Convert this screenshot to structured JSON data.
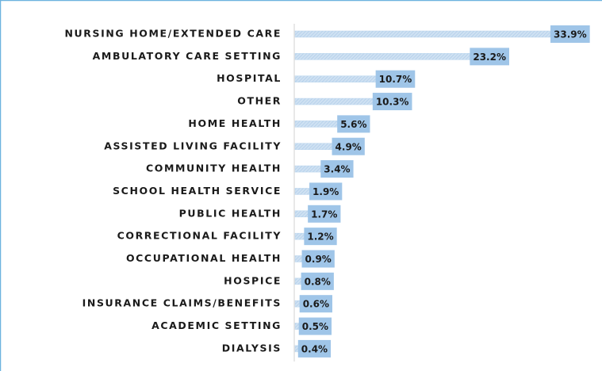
{
  "chart_data": {
    "type": "barh",
    "categories": [
      "NURSING HOME/EXTENDED CARE",
      "AMBULATORY CARE SETTING",
      "HOSPITAL",
      "OTHER",
      "HOME HEALTH",
      "ASSISTED LIVING FACILITY",
      "COMMUNITY HEALTH",
      "SCHOOL HEALTH SERVICE",
      "PUBLIC HEALTH",
      "CORRECTIONAL FACILITY",
      "OCCUPATIONAL HEALTH",
      "HOSPICE",
      "INSURANCE CLAIMS/BENEFITS",
      "ACADEMIC SETTING",
      "DIALYSIS"
    ],
    "values": [
      33.9,
      23.2,
      10.7,
      10.3,
      5.6,
      4.9,
      3.4,
      1.9,
      1.7,
      1.2,
      0.9,
      0.8,
      0.6,
      0.5,
      0.4
    ],
    "value_labels": [
      "33.9%",
      "23.2%",
      "10.7%",
      "10.3%",
      "5.6%",
      "4.9%",
      "3.4%",
      "1.9%",
      "1.7%",
      "1.2%",
      "0.9%",
      "0.8%",
      "0.6%",
      "0.5%",
      "0.4%"
    ],
    "color": "#b9d5ee",
    "label_color": "#9fc5e8"
  }
}
